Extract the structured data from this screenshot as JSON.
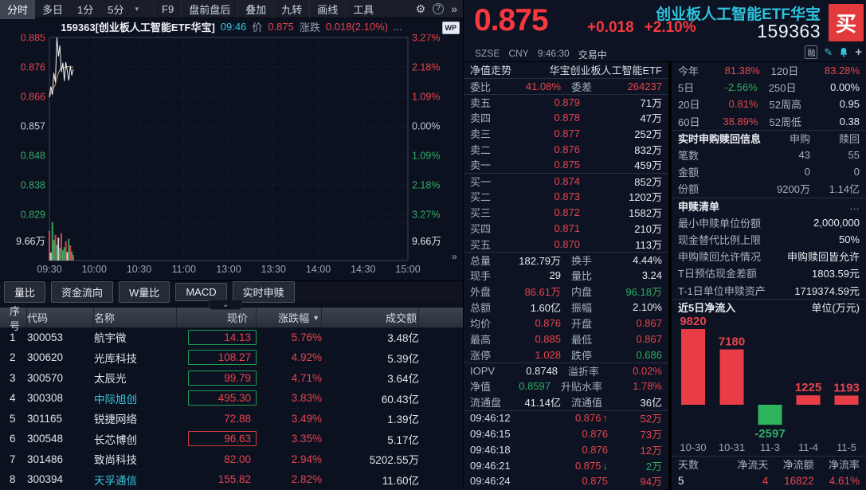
{
  "toolbar": {
    "tabs": [
      {
        "label": "分时",
        "active": true
      },
      {
        "label": "多日",
        "active": false
      },
      {
        "label": "1分",
        "active": false
      },
      {
        "label": "5分",
        "active": false
      }
    ],
    "dropdown_caret": "▾",
    "actions": [
      "F9",
      "盘前盘后",
      "叠加",
      "九转",
      "画线",
      "工具"
    ],
    "gear_icon": "⚙",
    "help_icon": "?",
    "more_icon": "»"
  },
  "chart_header": {
    "title": "159363[创业板人工智能ETF华宝]",
    "time": "09:46",
    "price_label": "价",
    "price": "0.875",
    "change_label": "涨跌",
    "change": "0.018(2.10%)",
    "ellipsis": "...",
    "wp_badge": "WP"
  },
  "chart_axes": {
    "left": [
      {
        "t": "0.885",
        "c": "up"
      },
      {
        "t": "0.876",
        "c": "up"
      },
      {
        "t": "0.866",
        "c": "up"
      },
      {
        "t": "0.857",
        "c": "flat"
      },
      {
        "t": "0.848",
        "c": "down"
      },
      {
        "t": "0.838",
        "c": "down"
      },
      {
        "t": "0.829",
        "c": "down"
      }
    ],
    "right": [
      {
        "t": "3.27%",
        "c": "up"
      },
      {
        "t": "2.18%",
        "c": "up"
      },
      {
        "t": "1.09%",
        "c": "up"
      },
      {
        "t": "0.00%",
        "c": "flat"
      },
      {
        "t": "1.09%",
        "c": "down"
      },
      {
        "t": "2.18%",
        "c": "down"
      },
      {
        "t": "3.27%",
        "c": "down"
      }
    ],
    "volume_left": "9.66万",
    "volume_right": "9.66万",
    "times": [
      "09:30",
      "10:00",
      "10:30",
      "11:00",
      "13:00",
      "13:30",
      "14:00",
      "14:30",
      "15:00"
    ],
    "expander": "»"
  },
  "chart_data": [
    {
      "type": "line",
      "title": "159363 分时走势",
      "prev_close": 0.857,
      "ylim": [
        0.829,
        0.885
      ],
      "x_total_minutes": 240,
      "series": [
        {
          "name": "price",
          "values": [
            0.866,
            0.8695,
            0.8668,
            0.8738,
            0.8708,
            0.885,
            0.879,
            0.8825,
            0.874,
            0.877,
            0.8712,
            0.8772,
            0.8742,
            0.8714,
            0.876,
            0.873,
            0.875
          ]
        },
        {
          "name": "avg",
          "values": [
            0.866,
            0.8675,
            0.868,
            0.8692,
            0.8701,
            0.8722,
            0.8736,
            0.8748,
            0.8752,
            0.8756,
            0.8755,
            0.8757,
            0.8758,
            0.8757,
            0.8757,
            0.8756,
            0.8757
          ]
        }
      ],
      "volume_max": 9.66,
      "volume_max_label": "9.66万",
      "volume": [
        7.5,
        2.0,
        9.66,
        5.2,
        6.5,
        4.0,
        5.8,
        3.2,
        6.9,
        2.6,
        3.4,
        4.9,
        2.1,
        5.5,
        3.8,
        2.3,
        1.4
      ],
      "volume_colors": [
        "up",
        "flat",
        "down",
        "down",
        "up",
        "down",
        "flat",
        "down",
        "up",
        "down",
        "down",
        "up",
        "flat",
        "down",
        "up",
        "down",
        "up"
      ]
    },
    {
      "type": "bar",
      "title": "近5日净流入",
      "unit": "单位(万元)",
      "categories": [
        "10-30",
        "10-31",
        "11-3",
        "11-4",
        "11-5"
      ],
      "values": [
        9820,
        7180,
        -2597,
        1225,
        1193
      ]
    }
  ],
  "left_tabs": [
    "量比",
    "资金流向",
    "W量比",
    "MACD",
    "实时申赎"
  ],
  "collapse_chevron": "⌄",
  "watchlist": {
    "headers": [
      "序号",
      "代码",
      "名称",
      "现价",
      "涨跌幅",
      "成交额"
    ],
    "sort_icon": "▼",
    "rows": [
      {
        "idx": "1",
        "code": "300053",
        "name": "航宇微",
        "name_c": "flat",
        "price": "14.13",
        "box": "green",
        "pct": "5.76%",
        "amt": "3.48亿"
      },
      {
        "idx": "2",
        "code": "300620",
        "name": "光库科技",
        "name_c": "flat",
        "price": "108.27",
        "box": "green",
        "pct": "4.92%",
        "amt": "5.39亿"
      },
      {
        "idx": "3",
        "code": "300570",
        "name": "太辰光",
        "name_c": "flat",
        "price": "99.79",
        "box": "green",
        "pct": "4.71%",
        "amt": "3.64亿"
      },
      {
        "idx": "4",
        "code": "300308",
        "name": "中际旭创",
        "name_c": "cyan",
        "price": "495.30",
        "box": "green",
        "pct": "3.83%",
        "amt": "60.43亿"
      },
      {
        "idx": "5",
        "code": "301165",
        "name": "锐捷网络",
        "name_c": "flat",
        "price": "72.88",
        "box": "none",
        "pct": "3.49%",
        "amt": "1.39亿"
      },
      {
        "idx": "6",
        "code": "300548",
        "name": "长芯博创",
        "name_c": "flat",
        "price": "96.63",
        "box": "red",
        "pct": "3.35%",
        "amt": "5.17亿"
      },
      {
        "idx": "7",
        "code": "301486",
        "name": "致尚科技",
        "name_c": "flat",
        "price": "82.00",
        "box": "none",
        "pct": "2.94%",
        "amt": "5202.55万"
      },
      {
        "idx": "8",
        "code": "300394",
        "name": "天孚通信",
        "name_c": "cyan",
        "price": "155.82",
        "box": "none",
        "pct": "2.82%",
        "amt": "11.60亿"
      }
    ]
  },
  "quote": {
    "price": "0.875",
    "change": "+0.018",
    "change_pct": "+2.10%",
    "name": "创业板人工智能ETF华宝",
    "code": "159363",
    "buy_label": "买",
    "exchange": "SZSE",
    "currency": "CNY",
    "time": "9:46:30",
    "status": "交易中",
    "margin_badge": "融",
    "edit_icon": "✎",
    "plus_icon": "+"
  },
  "mid": {
    "header_left": "净值走势",
    "header_right": "华宝创业板人工智能ETF",
    "weibi_label": "委比",
    "weibi_value": "41.08%",
    "weicha_label": "委差",
    "weicha_value": "264237",
    "asks": [
      {
        "label": "卖五",
        "price": "0.879",
        "vol": "71万"
      },
      {
        "label": "卖四",
        "price": "0.878",
        "vol": "47万"
      },
      {
        "label": "卖三",
        "price": "0.877",
        "vol": "252万"
      },
      {
        "label": "卖二",
        "price": "0.876",
        "vol": "832万"
      },
      {
        "label": "卖一",
        "price": "0.875",
        "vol": "459万"
      }
    ],
    "bids": [
      {
        "label": "买一",
        "price": "0.874",
        "vol": "852万"
      },
      {
        "label": "买二",
        "price": "0.873",
        "vol": "1202万"
      },
      {
        "label": "买三",
        "price": "0.872",
        "vol": "1582万"
      },
      {
        "label": "买四",
        "price": "0.871",
        "vol": "210万"
      },
      {
        "label": "买五",
        "price": "0.870",
        "vol": "113万"
      }
    ],
    "stats": [
      {
        "l1": "总量",
        "v1": "182.79万",
        "c1": "flat",
        "l2": "换手",
        "v2": "4.44%",
        "c2": "flat"
      },
      {
        "l1": "现手",
        "v1": "29",
        "c1": "flat",
        "l2": "量比",
        "v2": "3.24",
        "c2": "flat"
      },
      {
        "l1": "外盘",
        "v1": "86.61万",
        "c1": "up",
        "l2": "内盘",
        "v2": "96.18万",
        "c2": "down"
      },
      {
        "l1": "总额",
        "v1": "1.60亿",
        "c1": "flat",
        "l2": "振幅",
        "v2": "2.10%",
        "c2": "flat"
      },
      {
        "l1": "均价",
        "v1": "0.876",
        "c1": "up",
        "l2": "开盘",
        "v2": "0.867",
        "c2": "up"
      },
      {
        "l1": "最高",
        "v1": "0.885",
        "c1": "up",
        "l2": "最低",
        "v2": "0.867",
        "c2": "up"
      },
      {
        "l1": "涨停",
        "v1": "1.028",
        "c1": "up",
        "l2": "跌停",
        "v2": "0.686",
        "c2": "down"
      },
      {
        "l1": "IOPV",
        "v1": "0.8748",
        "c1": "flat",
        "l2": "溢折率",
        "v2": "0.02%",
        "c2": "up"
      },
      {
        "l1": "净值",
        "v1": "0.8597",
        "c1": "down",
        "l2": "升贴水率",
        "v2": "1.78%",
        "c2": "up"
      },
      {
        "l1": "流通盘",
        "v1": "41.14亿",
        "c1": "flat",
        "l2": "流通值",
        "v2": "36亿",
        "c2": "flat"
      }
    ],
    "ticks": [
      {
        "time": "09:46:12",
        "price": "0.876",
        "dir": "up",
        "vol": "52万",
        "vol_c": "up"
      },
      {
        "time": "09:46:15",
        "price": "0.876",
        "dir": "",
        "vol": "73万",
        "vol_c": "up"
      },
      {
        "time": "09:46:18",
        "price": "0.876",
        "dir": "",
        "vol": "12万",
        "vol_c": "up"
      },
      {
        "time": "09:46:21",
        "price": "0.875",
        "dir": "down",
        "vol": "2万",
        "vol_c": "down"
      },
      {
        "time": "09:46:24",
        "price": "0.875",
        "dir": "",
        "vol": "94万",
        "vol_c": "up"
      }
    ],
    "arrow_up": "↑",
    "arrow_down": "↓"
  },
  "right_panel": {
    "perf": [
      {
        "l1": "今年",
        "v1": "81.38%",
        "c1": "up",
        "l2": "120日",
        "v2": "83.28%",
        "c2": "up"
      },
      {
        "l1": "5日",
        "v1": "-2.56%",
        "c1": "down",
        "l2": "250日",
        "v2": "0.00%",
        "c2": "flat"
      },
      {
        "l1": "20日",
        "v1": "0.81%",
        "c1": "up",
        "l2": "52周高",
        "v2": "0.95",
        "c2": "flat"
      },
      {
        "l1": "60日",
        "v1": "38.89%",
        "c1": "up",
        "l2": "52周低",
        "v2": "0.38",
        "c2": "flat"
      }
    ],
    "subscribe": {
      "title": "实时申购赎回信息",
      "col1": "申购",
      "col2": "赎回",
      "rows": [
        {
          "label": "笔数",
          "v1": "43",
          "v2": "55"
        },
        {
          "label": "金额",
          "v1": "0",
          "v2": "0"
        },
        {
          "label": "份额",
          "v1": "9200万",
          "v2": "1.14亿"
        }
      ]
    },
    "shenshu": {
      "title": "申赎清单",
      "more": "…",
      "rows": [
        {
          "label": "最小申赎单位份额",
          "value": "2,000,000"
        },
        {
          "label": "现金替代比例上限",
          "value": "50%"
        },
        {
          "label": "申购赎回允许情况",
          "value": "申购赎回皆允许"
        },
        {
          "label": "T日预估现金差额",
          "value": "1803.59元"
        },
        {
          "label": "T-1日单位申赎资产",
          "value": "1719374.59元"
        }
      ]
    },
    "flows": {
      "title": "近5日净流入",
      "unit": "单位(万元)",
      "footer_labels": [
        "天数",
        "净流天",
        "净流额",
        "净流率"
      ],
      "footer_values": [
        {
          "t": "5",
          "c": "flat"
        },
        {
          "t": "4",
          "c": "up"
        },
        {
          "t": "16822",
          "c": "up"
        },
        {
          "t": "4.61%",
          "c": "up"
        }
      ]
    }
  },
  "colors": {
    "up": "#e8444e",
    "down": "#2fae63",
    "flat": "#e8ebf1",
    "accent_cyan": "#2ec2dc",
    "buy_red": "#e23a3c",
    "avg_line": "#c9a15c",
    "price_line": "#f2f5f9"
  }
}
